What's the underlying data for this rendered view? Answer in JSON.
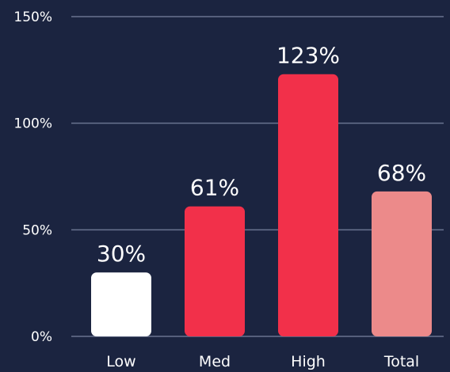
{
  "chart_data": {
    "type": "bar",
    "categories": [
      "Low",
      "Med",
      "High",
      "Total"
    ],
    "values": [
      30,
      61,
      123,
      68
    ],
    "value_labels": [
      "30%",
      "61%",
      "123%",
      "68%"
    ],
    "bar_colors": [
      "#ffffff",
      "#f2304a",
      "#f2304a",
      "#ec8a8a"
    ],
    "yticks": [
      0,
      50,
      100,
      150
    ],
    "ytick_labels": [
      "0%",
      "50%",
      "100%",
      "150%"
    ],
    "ylim": [
      0,
      150
    ],
    "grid": true,
    "legend": "none",
    "title": "",
    "xlabel": "",
    "ylabel": ""
  },
  "colors": {
    "background": "#1b2440",
    "grid": "#6a7390",
    "text": "#ffffff"
  }
}
